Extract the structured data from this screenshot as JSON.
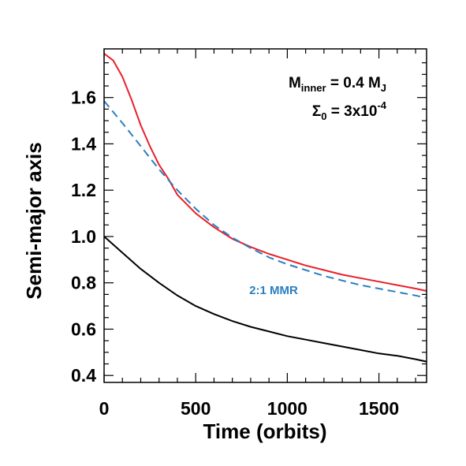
{
  "chart_data": {
    "type": "line",
    "xlabel": "Time (orbits)",
    "ylabel": "Semi-major axis",
    "xlim": [
      0,
      1760
    ],
    "ylim": [
      0.37,
      1.81
    ],
    "xticks": [
      0,
      500,
      1000,
      1500
    ],
    "yticks": [
      0.4,
      0.6,
      0.8,
      1.0,
      1.2,
      1.4,
      1.6
    ],
    "ytick_labels": [
      "0.4",
      "0.6",
      "0.8",
      "1.0",
      "1.2",
      "1.4",
      "1.6"
    ],
    "grid": false,
    "series": [
      {
        "color": "#e8202a",
        "dash": "solid",
        "x": [
          0,
          50,
          100,
          150,
          200,
          250,
          300,
          350,
          400,
          500,
          600,
          700,
          800,
          900,
          1000,
          1100,
          1200,
          1300,
          1400,
          1500,
          1600,
          1700,
          1760
        ],
        "y": [
          1.79,
          1.76,
          1.69,
          1.59,
          1.48,
          1.39,
          1.31,
          1.25,
          1.18,
          1.1,
          1.04,
          0.99,
          0.955,
          0.925,
          0.9,
          0.875,
          0.855,
          0.835,
          0.82,
          0.805,
          0.79,
          0.775,
          0.765
        ]
      },
      {
        "color": "#2a7fc0",
        "dash": "dashed",
        "x": [
          0,
          100,
          200,
          300,
          400,
          500,
          600,
          700,
          800,
          900,
          1000,
          1100,
          1200,
          1300,
          1400,
          1500,
          1600,
          1700,
          1760
        ],
        "y": [
          1.585,
          1.49,
          1.39,
          1.29,
          1.2,
          1.12,
          1.05,
          0.995,
          0.95,
          0.91,
          0.88,
          0.855,
          0.83,
          0.81,
          0.79,
          0.775,
          0.76,
          0.745,
          0.735
        ]
      },
      {
        "color": "#000000",
        "dash": "solid",
        "x": [
          0,
          100,
          200,
          300,
          400,
          500,
          600,
          700,
          800,
          900,
          1000,
          1100,
          1200,
          1300,
          1400,
          1500,
          1600,
          1700,
          1760
        ],
        "y": [
          1.0,
          0.93,
          0.86,
          0.8,
          0.745,
          0.7,
          0.665,
          0.635,
          0.61,
          0.59,
          0.57,
          0.555,
          0.54,
          0.525,
          0.51,
          0.495,
          0.485,
          0.47,
          0.46
        ]
      }
    ],
    "annotations": {
      "mass_symbol": "M",
      "mass_sub": "inner",
      "mass_value": " = 0.4 M",
      "mass_unit_sub": "J",
      "sigma_symbol": "Σ",
      "sigma_sub": "0",
      "sigma_value": " = 3x10",
      "sigma_exp": "-4",
      "mmr_label": "2:1 MMR"
    }
  }
}
